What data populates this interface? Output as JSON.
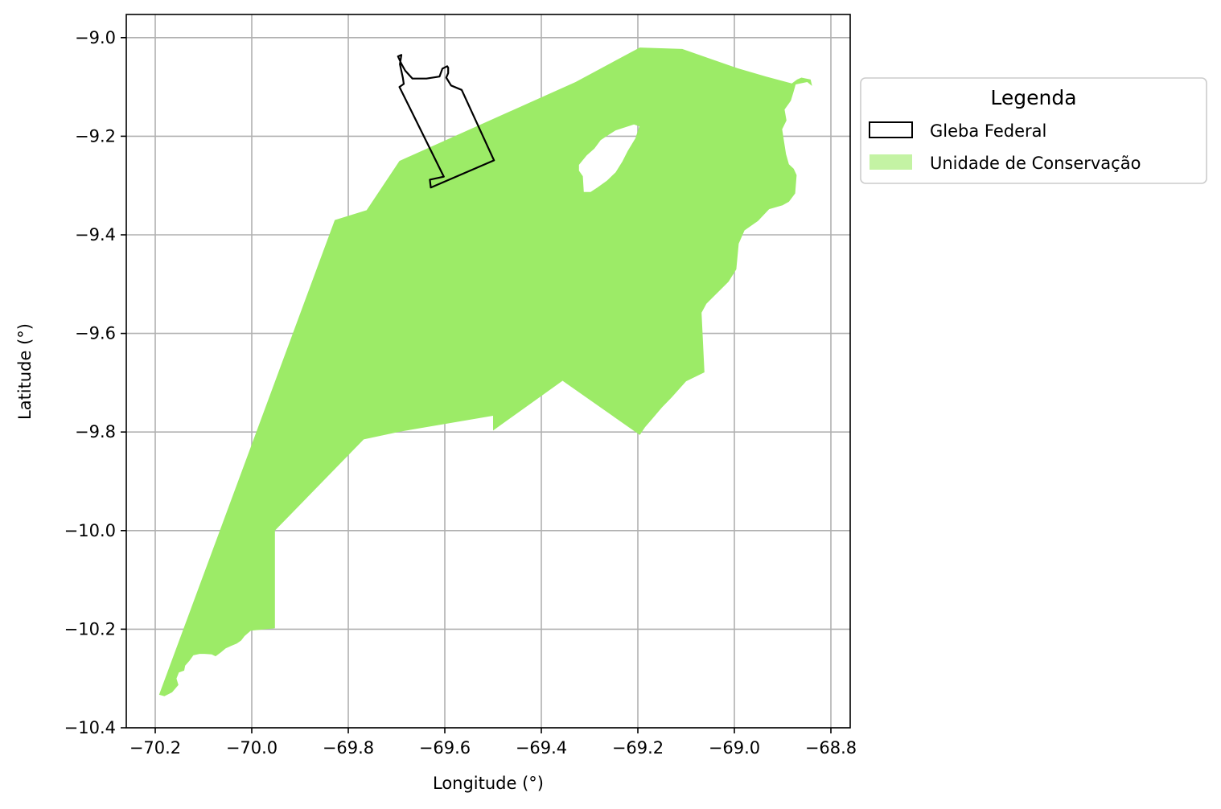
{
  "chart_data": {
    "type": "map",
    "xlabel": "Longitude (°)",
    "ylabel": "Latitude (°)",
    "xlim": [
      -70.26,
      -68.76
    ],
    "ylim": [
      -10.4,
      -8.953
    ],
    "xticks": [
      -70.2,
      -70.0,
      -69.8,
      -69.6,
      -69.4,
      -69.2,
      -69.0,
      -68.8
    ],
    "xtick_labels": [
      "−70.2",
      "−70.0",
      "−69.8",
      "−69.6",
      "−69.4",
      "−69.2",
      "−69.0",
      "−68.8"
    ],
    "yticks": [
      -9.0,
      -9.2,
      -9.4,
      -9.6,
      -9.8,
      -10.0,
      -10.2,
      -10.4
    ],
    "ytick_labels": [
      "−9.0",
      "−9.2",
      "−9.4",
      "−9.6",
      "−9.8",
      "−10.0",
      "−10.2",
      "−10.4"
    ],
    "grid": true,
    "legend": {
      "title": "Legenda",
      "placement": "outside upper right",
      "entries": [
        {
          "label": "Gleba Federal",
          "style": "outline"
        },
        {
          "label": "Unidade de Conservação",
          "style": "fill"
        }
      ]
    },
    "colors": {
      "conservation_fill": "#9ceb67",
      "conservation_legend": "#c4f3a4",
      "gleba_stroke": "#000000",
      "grid": "#b0b0b0"
    },
    "series": [
      {
        "name": "Unidade de Conservação",
        "kind": "polygon",
        "coordinates": [
          [
            -70.192,
            -10.333
          ],
          [
            -70.181,
            -10.336
          ],
          [
            -70.165,
            -10.328
          ],
          [
            -70.152,
            -10.313
          ],
          [
            -70.156,
            -10.3
          ],
          [
            -70.151,
            -10.288
          ],
          [
            -70.14,
            -10.284
          ],
          [
            -70.138,
            -10.274
          ],
          [
            -70.129,
            -10.264
          ],
          [
            -70.121,
            -10.253
          ],
          [
            -70.108,
            -10.25
          ],
          [
            -70.098,
            -10.25
          ],
          [
            -70.083,
            -10.251
          ],
          [
            -70.075,
            -10.255
          ],
          [
            -70.064,
            -10.247
          ],
          [
            -70.059,
            -10.243
          ],
          [
            -70.054,
            -10.239
          ],
          [
            -70.043,
            -10.234
          ],
          [
            -70.031,
            -10.229
          ],
          [
            -70.022,
            -10.223
          ],
          [
            -70.015,
            -10.214
          ],
          [
            -70.002,
            -10.203
          ],
          [
            -69.952,
            -10.198
          ],
          [
            -69.952,
            -10.0
          ],
          [
            -69.768,
            -9.815
          ],
          [
            -69.692,
            -9.799
          ],
          [
            -69.5,
            -9.767
          ],
          [
            -69.5,
            -9.797
          ],
          [
            -69.356,
            -9.696
          ],
          [
            -69.196,
            -9.806
          ],
          [
            -69.185,
            -9.79
          ],
          [
            -69.17,
            -9.773
          ],
          [
            -69.15,
            -9.75
          ],
          [
            -69.13,
            -9.73
          ],
          [
            -69.1,
            -9.697
          ],
          [
            -69.062,
            -9.679
          ],
          [
            -69.068,
            -9.558
          ],
          [
            -69.058,
            -9.54
          ],
          [
            -69.012,
            -9.495
          ],
          [
            -68.996,
            -9.47
          ],
          [
            -68.991,
            -9.418
          ],
          [
            -68.979,
            -9.391
          ],
          [
            -68.951,
            -9.372
          ],
          [
            -68.928,
            -9.348
          ],
          [
            -68.9,
            -9.34
          ],
          [
            -68.887,
            -9.333
          ],
          [
            -68.874,
            -9.316
          ],
          [
            -68.871,
            -9.279
          ],
          [
            -68.877,
            -9.266
          ],
          [
            -68.887,
            -9.257
          ],
          [
            -68.893,
            -9.236
          ],
          [
            -68.897,
            -9.211
          ],
          [
            -68.901,
            -9.186
          ],
          [
            -68.892,
            -9.168
          ],
          [
            -68.896,
            -9.146
          ],
          [
            -68.883,
            -9.128
          ],
          [
            -68.878,
            -9.112
          ],
          [
            -68.873,
            -9.095
          ],
          [
            -68.849,
            -9.09
          ],
          [
            -68.839,
            -9.098
          ],
          [
            -68.842,
            -9.085
          ],
          [
            -68.861,
            -9.081
          ],
          [
            -68.87,
            -9.085
          ],
          [
            -68.881,
            -9.093
          ],
          [
            -68.934,
            -9.079
          ],
          [
            -68.994,
            -9.062
          ],
          [
            -69.108,
            -9.023
          ],
          [
            -69.196,
            -9.02
          ],
          [
            -69.329,
            -9.09
          ],
          [
            -69.694,
            -9.25
          ],
          [
            -69.762,
            -9.35
          ],
          [
            -69.828,
            -9.37
          ]
        ],
        "holes": [
          [
            [
              -69.312,
              -9.313
            ],
            [
              -69.314,
              -9.281
            ],
            [
              -69.322,
              -9.27
            ],
            [
              -69.322,
              -9.258
            ],
            [
              -69.306,
              -9.239
            ],
            [
              -69.29,
              -9.225
            ],
            [
              -69.277,
              -9.208
            ],
            [
              -69.262,
              -9.198
            ],
            [
              -69.246,
              -9.188
            ],
            [
              -69.23,
              -9.183
            ],
            [
              -69.208,
              -9.176
            ],
            [
              -69.197,
              -9.18
            ],
            [
              -69.205,
              -9.204
            ],
            [
              -69.221,
              -9.23
            ],
            [
              -69.232,
              -9.251
            ],
            [
              -69.246,
              -9.273
            ],
            [
              -69.264,
              -9.29
            ],
            [
              -69.284,
              -9.304
            ],
            [
              -69.298,
              -9.313
            ]
          ]
        ]
      },
      {
        "name": "Gleba Federal",
        "kind": "polygon-outline",
        "coordinates": [
          [
            -69.602,
            -9.282
          ],
          [
            -69.631,
            -9.288
          ],
          [
            -69.629,
            -9.304
          ],
          [
            -69.498,
            -9.249
          ],
          [
            -69.565,
            -9.106
          ],
          [
            -69.587,
            -9.097
          ],
          [
            -69.597,
            -9.081
          ],
          [
            -69.593,
            -9.072
          ],
          [
            -69.593,
            -9.061
          ],
          [
            -69.595,
            -9.058
          ],
          [
            -69.605,
            -9.063
          ],
          [
            -69.611,
            -9.079
          ],
          [
            -69.638,
            -9.083
          ],
          [
            -69.667,
            -9.083
          ],
          [
            -69.682,
            -9.067
          ],
          [
            -69.69,
            -9.053
          ],
          [
            -69.697,
            -9.038
          ],
          [
            -69.69,
            -9.035
          ],
          [
            -69.693,
            -9.054
          ],
          [
            -69.687,
            -9.081
          ],
          [
            -69.685,
            -9.094
          ],
          [
            -69.694,
            -9.1
          ]
        ]
      }
    ]
  }
}
